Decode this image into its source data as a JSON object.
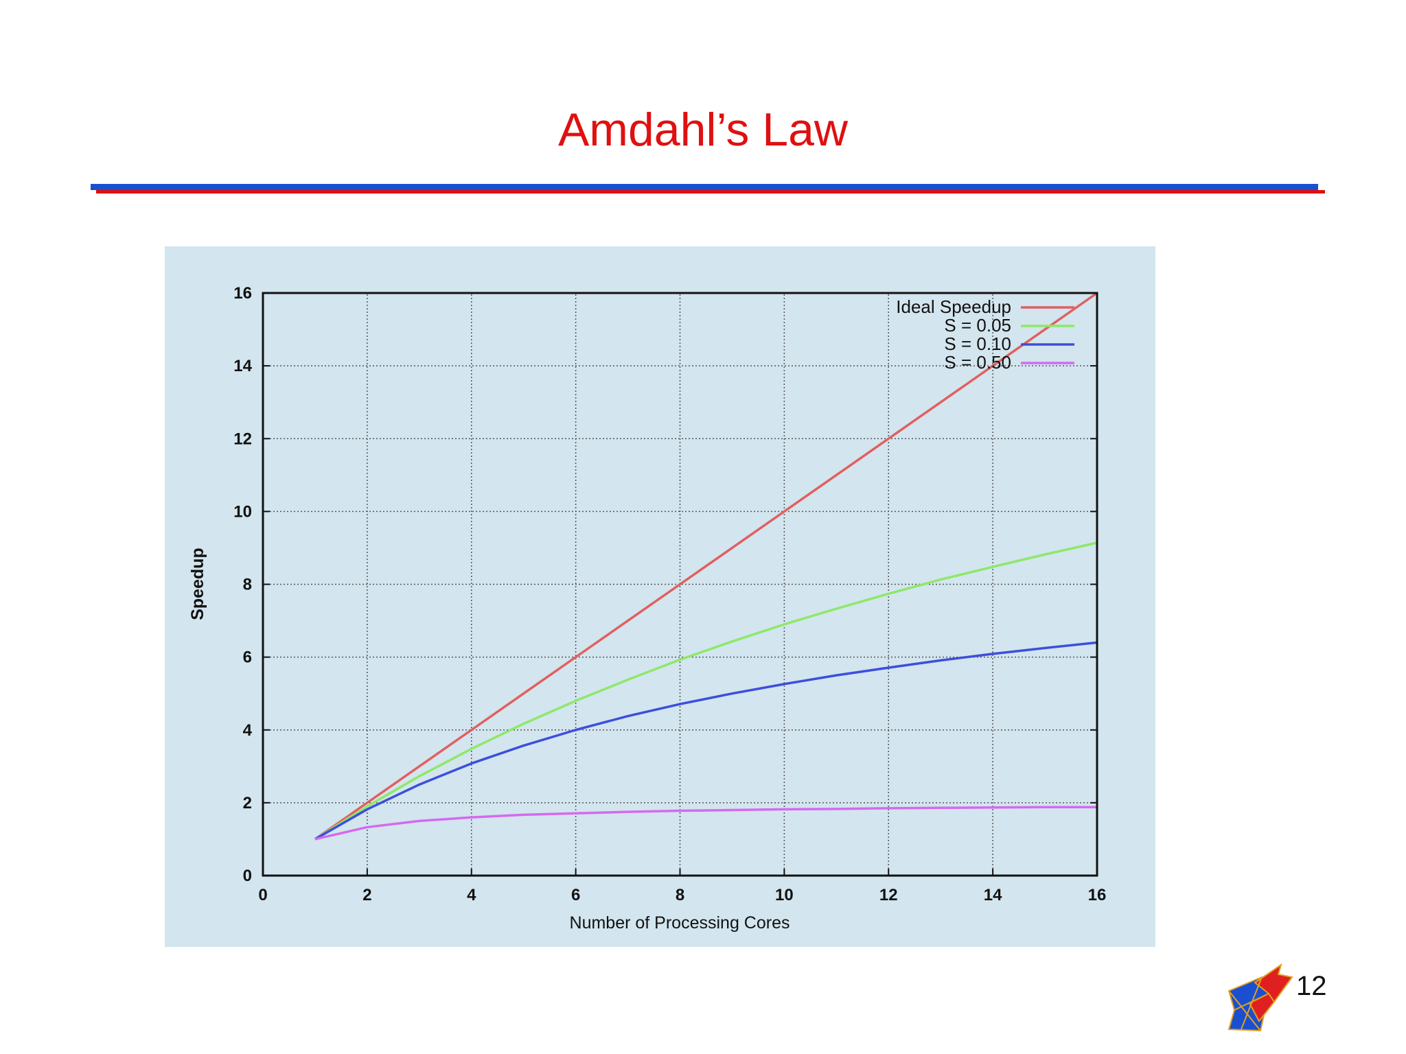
{
  "slide": {
    "title": "Amdahl’s Law",
    "page_number": "12",
    "title_color": "#e01010",
    "rule_colors": [
      "#1a4fd0",
      "#e01010"
    ],
    "logo_icon": "arrow-logo-icon"
  },
  "chart_data": {
    "type": "line",
    "title": "",
    "xlabel": "Number of Processing Cores",
    "ylabel": "Speedup",
    "xlim": [
      0,
      16
    ],
    "ylim": [
      0,
      16
    ],
    "x_ticks": [
      0,
      2,
      4,
      6,
      8,
      10,
      12,
      14,
      16
    ],
    "y_ticks": [
      0,
      2,
      4,
      6,
      8,
      10,
      12,
      14,
      16
    ],
    "grid": true,
    "legend_position": "top-right",
    "background": "#d3e5ee",
    "x": [
      1,
      2,
      3,
      4,
      5,
      6,
      7,
      8,
      9,
      10,
      11,
      12,
      13,
      14,
      15,
      16
    ],
    "series": [
      {
        "name": "Ideal Speedup",
        "color": "#e06060",
        "values": [
          1,
          2,
          3,
          4,
          5,
          6,
          7,
          8,
          9,
          10,
          11,
          12,
          13,
          14,
          15,
          16
        ]
      },
      {
        "name": "S = 0.05",
        "color": "#8ee86a",
        "values": [
          1.0,
          1.9,
          2.73,
          3.48,
          4.17,
          4.8,
          5.38,
          5.93,
          6.43,
          6.9,
          7.33,
          7.74,
          8.13,
          8.48,
          8.82,
          9.14
        ]
      },
      {
        "name": "S = 0.10",
        "color": "#3c4fdc",
        "values": [
          1.0,
          1.82,
          2.5,
          3.08,
          3.57,
          4.0,
          4.38,
          4.71,
          5.0,
          5.26,
          5.5,
          5.71,
          5.91,
          6.09,
          6.25,
          6.4
        ]
      },
      {
        "name": "S = 0.50",
        "color": "#d46af0",
        "values": [
          1.0,
          1.33,
          1.5,
          1.6,
          1.67,
          1.71,
          1.75,
          1.78,
          1.8,
          1.82,
          1.83,
          1.85,
          1.86,
          1.87,
          1.88,
          1.88
        ]
      }
    ]
  }
}
